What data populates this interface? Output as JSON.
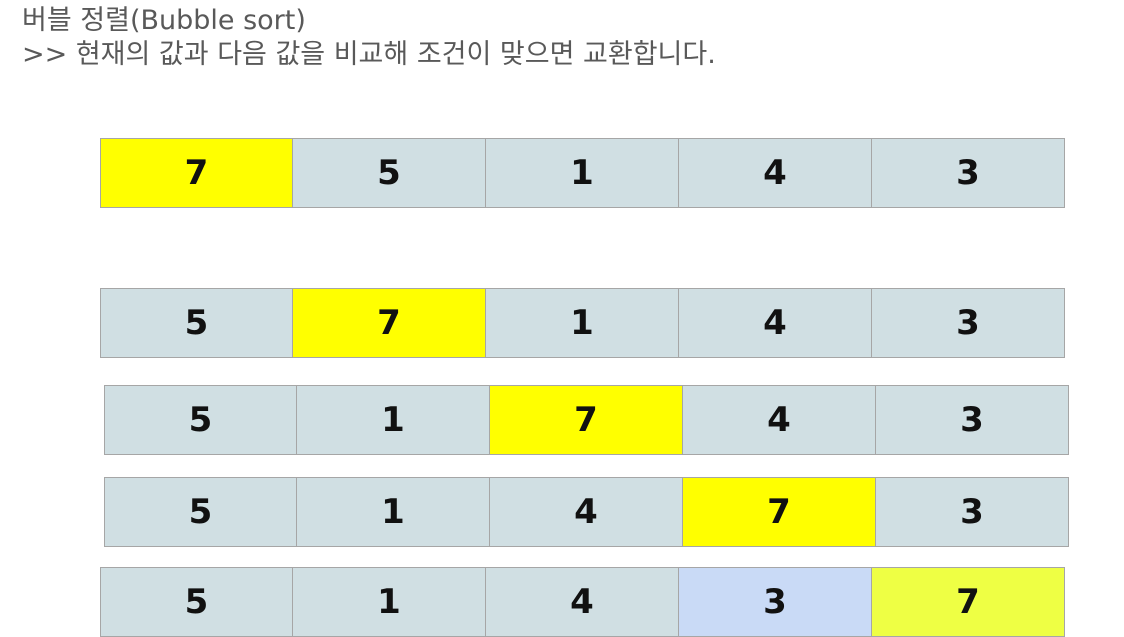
{
  "header": {
    "title": "버블 정렬(Bubble sort)",
    "subtitle": ">> 현재의 값과 다음 값을 비교해 조건이 맞으면 교환합니다."
  },
  "colors": {
    "cell_default": "#d0dfe3",
    "cell_current": "#ffff00",
    "cell_final": "#eeff44",
    "cell_swapped": "#c9daf6",
    "border": "#a6a6a6"
  },
  "steps": [
    {
      "cells": [
        {
          "value": "7",
          "state": "current"
        },
        {
          "value": "5",
          "state": "default"
        },
        {
          "value": "1",
          "state": "default"
        },
        {
          "value": "4",
          "state": "default"
        },
        {
          "value": "3",
          "state": "default"
        }
      ]
    },
    {
      "cells": [
        {
          "value": "5",
          "state": "default"
        },
        {
          "value": "7",
          "state": "current"
        },
        {
          "value": "1",
          "state": "default"
        },
        {
          "value": "4",
          "state": "default"
        },
        {
          "value": "3",
          "state": "default"
        }
      ]
    },
    {
      "cells": [
        {
          "value": "5",
          "state": "default"
        },
        {
          "value": "1",
          "state": "default"
        },
        {
          "value": "7",
          "state": "current"
        },
        {
          "value": "4",
          "state": "default"
        },
        {
          "value": "3",
          "state": "default"
        }
      ]
    },
    {
      "cells": [
        {
          "value": "5",
          "state": "default"
        },
        {
          "value": "1",
          "state": "default"
        },
        {
          "value": "4",
          "state": "default"
        },
        {
          "value": "7",
          "state": "current"
        },
        {
          "value": "3",
          "state": "default"
        }
      ]
    },
    {
      "cells": [
        {
          "value": "5",
          "state": "default"
        },
        {
          "value": "1",
          "state": "default"
        },
        {
          "value": "4",
          "state": "default"
        },
        {
          "value": "3",
          "state": "swapped"
        },
        {
          "value": "7",
          "state": "final"
        }
      ]
    }
  ]
}
